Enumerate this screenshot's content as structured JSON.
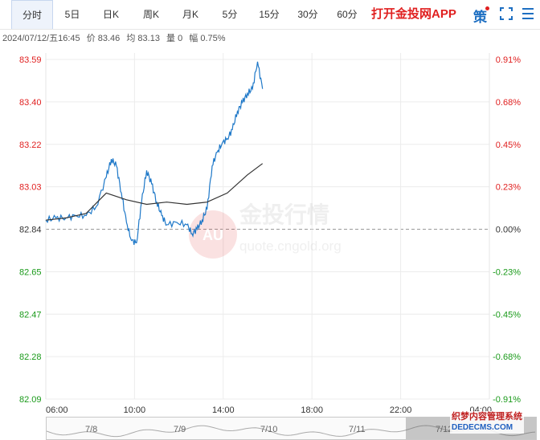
{
  "tabs": [
    {
      "label": "分时",
      "active": true
    },
    {
      "label": "5日"
    },
    {
      "label": "日K"
    },
    {
      "label": "周K"
    },
    {
      "label": "月K"
    },
    {
      "label": "5分"
    },
    {
      "label": "15分"
    },
    {
      "label": "30分"
    },
    {
      "label": "60分"
    }
  ],
  "app_link": "打开金投网APP",
  "ce_label": "策",
  "icons": {
    "fullscreen": "fullscreen-icon",
    "more": "more-icon"
  },
  "info": {
    "datetime": "2024/07/12/五16:45",
    "price": "价 83.46",
    "avg": "均 83.13",
    "volume": "量 0",
    "change": "幅 0.75%"
  },
  "watermark": {
    "brand": "金投行情",
    "site": "quote.cngold.org",
    "logo": "AU"
  },
  "navigator": {
    "dates": [
      "7/8",
      "7/9",
      "7/10",
      "7/11",
      "7/12"
    ]
  },
  "corner_watermark": {
    "line1": "织梦内容管理系统",
    "line2": "DEDECMS.COM"
  },
  "colors": {
    "up": "#e02020",
    "down": "#1a9a1a",
    "price_line": "#1e78c8",
    "avg_line": "#333333",
    "flat": "#333333"
  },
  "chart_data": {
    "type": "line",
    "title": "",
    "xlabel": "",
    "ylabel": "",
    "prev_close": 82.84,
    "ylim": [
      82.09,
      83.59
    ],
    "y_ticks": [
      "83.59",
      "83.40",
      "83.22",
      "83.03",
      "82.84",
      "82.65",
      "82.47",
      "82.28",
      "82.09"
    ],
    "pct_ticks": [
      "0.91%",
      "0.68%",
      "0.45%",
      "0.23%",
      "0.00%",
      "-0.23%",
      "-0.45%",
      "-0.68%",
      "-0.91%"
    ],
    "x_ticks": [
      "06:00",
      "10:00",
      "14:00",
      "18:00",
      "22:00",
      "04:00"
    ],
    "grid": true,
    "series": [
      {
        "key": "price",
        "x": [
          "06:00",
          "06:30",
          "07:00",
          "07:30",
          "08:00",
          "08:30",
          "09:00",
          "09:15",
          "09:30",
          "09:45",
          "10:00",
          "10:15",
          "10:30",
          "10:45",
          "11:00",
          "11:15",
          "11:30",
          "11:45",
          "12:00",
          "12:30",
          "13:00",
          "13:15",
          "13:30",
          "13:45",
          "14:00",
          "14:15",
          "14:30",
          "14:45",
          "15:00",
          "15:15",
          "15:30",
          "15:45",
          "16:00",
          "16:15",
          "16:30",
          "16:45"
        ],
        "values": [
          82.88,
          82.89,
          82.89,
          82.9,
          82.9,
          82.94,
          83.07,
          83.15,
          83.12,
          83.0,
          82.87,
          82.79,
          82.78,
          82.96,
          83.1,
          83.04,
          82.96,
          82.9,
          82.86,
          82.87,
          82.86,
          82.82,
          82.84,
          82.88,
          82.93,
          83.12,
          83.18,
          83.22,
          83.24,
          83.28,
          83.36,
          83.4,
          83.44,
          83.46,
          83.58,
          83.46
        ]
      },
      {
        "key": "average",
        "x": [
          "06:00",
          "07:00",
          "08:00",
          "09:00",
          "10:00",
          "11:00",
          "12:00",
          "13:00",
          "14:00",
          "15:00",
          "16:00",
          "16:45"
        ],
        "values": [
          82.88,
          82.89,
          82.91,
          83.0,
          82.97,
          82.95,
          82.96,
          82.95,
          82.96,
          83.0,
          83.08,
          83.13
        ]
      }
    ]
  }
}
